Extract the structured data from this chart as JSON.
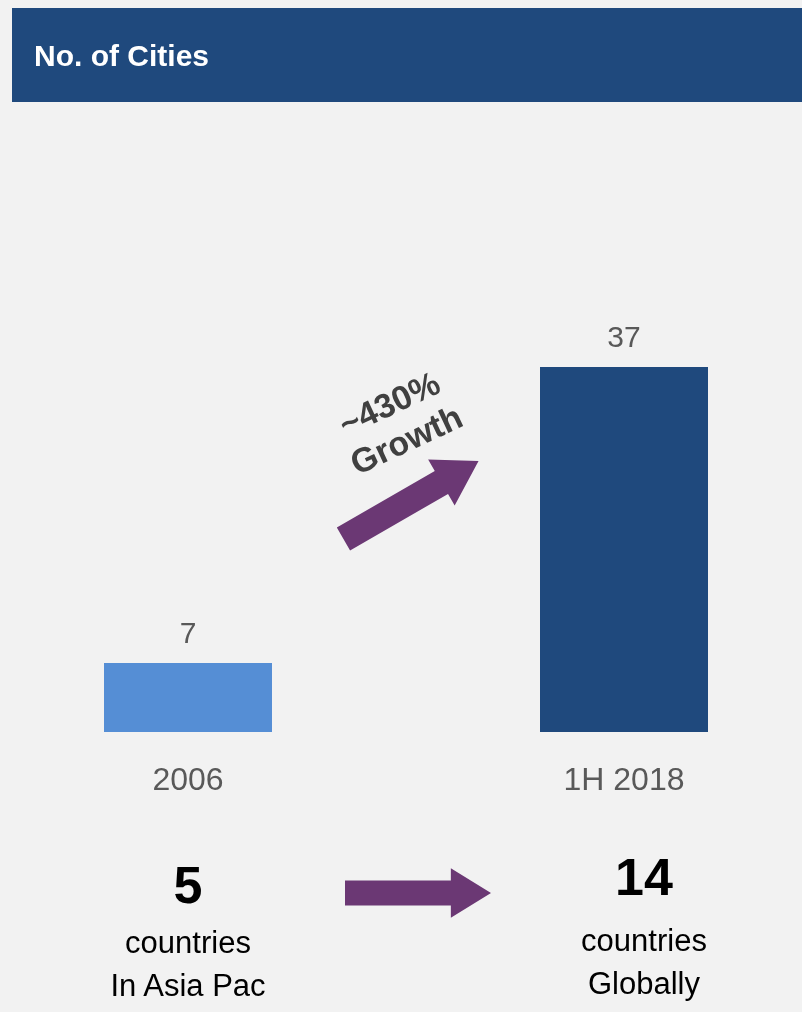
{
  "chart_data": {
    "type": "bar",
    "title": "No. of Cities",
    "categories": [
      "2006",
      "1H 2018"
    ],
    "values": [
      7,
      37
    ],
    "colors": [
      "#558ed5",
      "#1f497d"
    ],
    "data_labels": true,
    "annotations": [
      "~430%\nGrowth",
      "5",
      "countries\nIn Asia Pac",
      "14",
      "countries\nGlobally"
    ]
  }
}
